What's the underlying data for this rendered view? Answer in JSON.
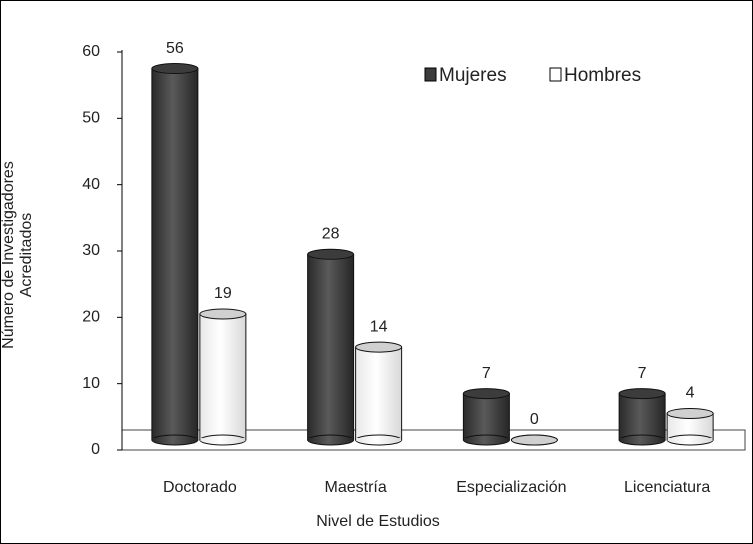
{
  "chart_data": {
    "type": "bar3d",
    "x_label": "Nivel de Estudios",
    "y_label": "Número de Investigadores Acreditados",
    "categories": [
      "Doctorado",
      "Maestría",
      "Especialización",
      "Licenciatura"
    ],
    "series": [
      {
        "name": "Mujeres",
        "color": "#3c3c3c",
        "values": [
          56,
          28,
          7,
          7
        ]
      },
      {
        "name": "Hombres",
        "color": "#ffffff",
        "values": [
          19,
          14,
          0,
          4
        ]
      }
    ],
    "ylim": [
      0,
      60
    ],
    "yticks": [
      0,
      10,
      20,
      30,
      40,
      50,
      60
    ],
    "legend": "top-right"
  }
}
